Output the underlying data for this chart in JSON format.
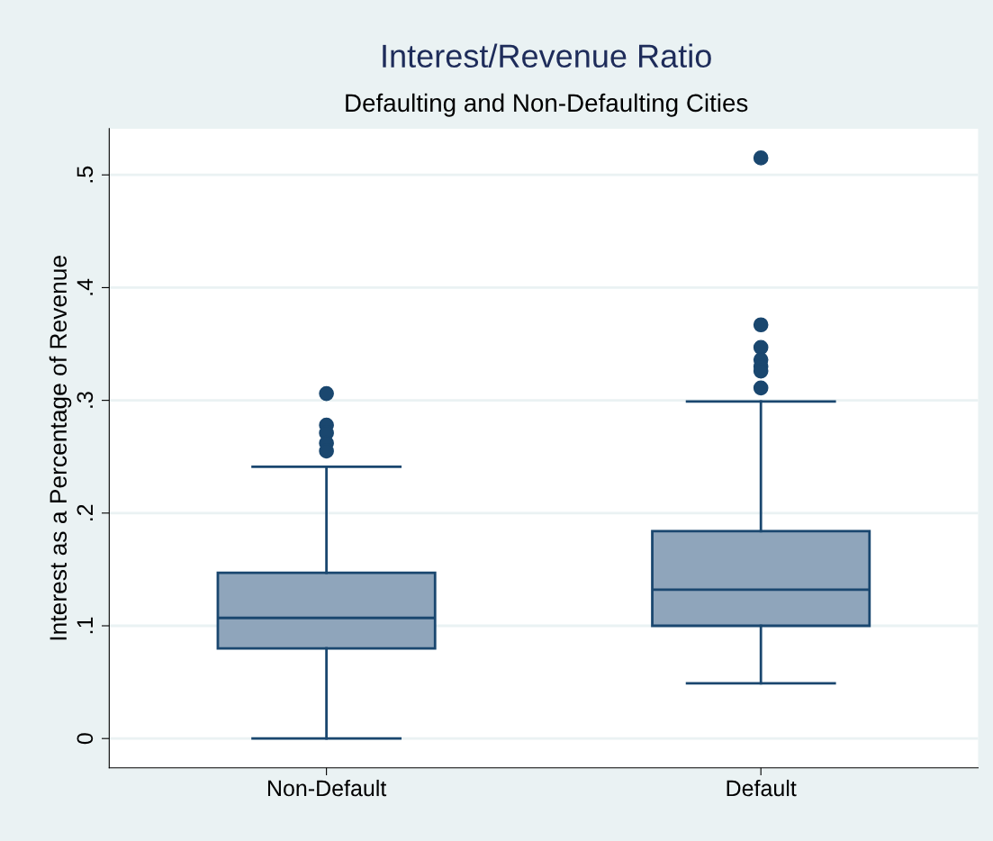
{
  "chart_data": {
    "type": "box",
    "title": "Interest/Revenue Ratio",
    "subtitle": "Defaulting and Non-Defaulting Cities",
    "ylabel": "Interest as a Percentage of Revenue",
    "categories": [
      "Non-Default",
      "Default"
    ],
    "series": [
      {
        "color": "#8fa5bb",
        "boxes": [
          {
            "low": 0,
            "q1": 0.08,
            "median": 0.107,
            "q3": 0.147,
            "high": 0.241,
            "outliers": [
              0.306,
              0.278,
              0.271,
              0.262,
              0.255
            ]
          },
          {
            "low": 0.049,
            "q1": 0.1,
            "median": 0.132,
            "q3": 0.184,
            "high": 0.299,
            "outliers": [
              0.515,
              0.367,
              0.347,
              0.336,
              0.33,
              0.326,
              0.311
            ]
          }
        ]
      }
    ],
    "ylim": [
      -0.026,
      0.541
    ],
    "yticks": [
      {
        "value": 0,
        "label": "0"
      },
      {
        "value": 0.1,
        "label": ".1"
      },
      {
        "value": 0.2,
        "label": ".2"
      },
      {
        "value": 0.3,
        "label": ".3"
      },
      {
        "value": 0.4,
        "label": ".4"
      },
      {
        "value": 0.5,
        "label": ".5"
      }
    ],
    "grid": "y",
    "legend": false
  }
}
